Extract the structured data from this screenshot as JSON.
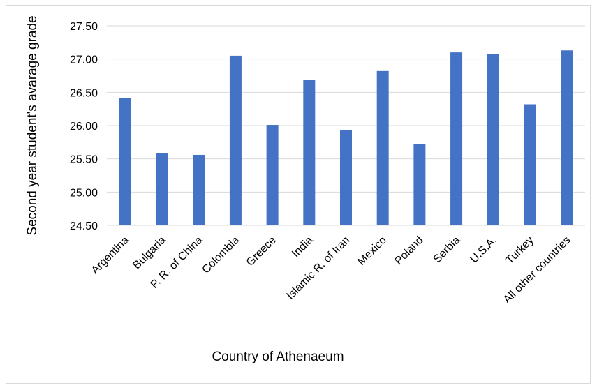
{
  "chart_data": {
    "type": "bar",
    "title": "",
    "xlabel": "Country of Athenaeum",
    "ylabel": "Second year student's avarage grade",
    "categories": [
      "Argentina",
      "Bulgaria",
      "P. R. of China",
      "Colombia",
      "Greece",
      "India",
      "Islamic R. of Iran",
      "Mexico",
      "Poland",
      "Serbia",
      "U.S.A.",
      "Turkey",
      "All other countries"
    ],
    "values": [
      26.41,
      25.59,
      25.56,
      27.05,
      26.01,
      26.69,
      25.93,
      26.82,
      25.72,
      27.1,
      27.08,
      26.32,
      27.13
    ],
    "ylim": [
      24.5,
      27.5
    ],
    "yticks": [
      "24.50",
      "25.00",
      "25.50",
      "26.00",
      "26.50",
      "27.00",
      "27.50"
    ],
    "grid": true,
    "bar_color": "#4472c4",
    "grid_color": "#d9d9d9"
  }
}
